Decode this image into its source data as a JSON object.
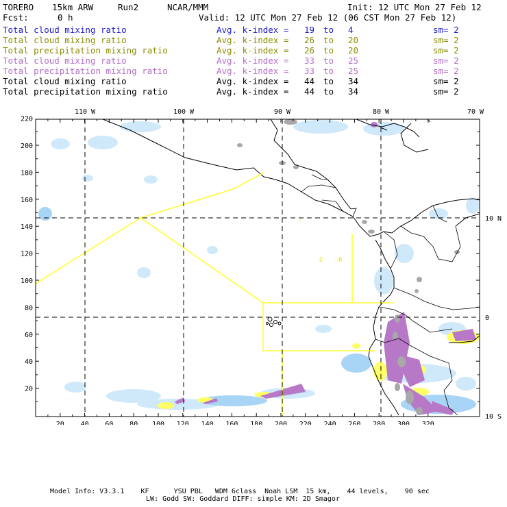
{
  "header": {
    "model": "TORERO",
    "resolution": "15km ARW",
    "run": "Run2",
    "org": "NCAR/MMM",
    "init": "Init: 12 UTC Mon 27 Feb 12",
    "fcst_label": "Fcst:",
    "fcst_value": "0 h",
    "valid": "Valid: 12 UTC Mon 27 Feb 12 (06 CST Mon 27 Feb 12)"
  },
  "legend": [
    {
      "field": "Total cloud mixing ratio",
      "kindex": "Avg. k-index =",
      "from": "19",
      "to_word": "to",
      "to": "4",
      "sm": "sm= 2",
      "color": "#1c1cc8"
    },
    {
      "field": "Total cloud mixing ratio",
      "kindex": "Avg. k-index =",
      "from": "26",
      "to_word": "to",
      "to": "20",
      "sm": "sm= 2",
      "color": "#8c8c00"
    },
    {
      "field": "Total precipitation mixing ratio",
      "kindex": "Avg. k-index =",
      "from": "26",
      "to_word": "to",
      "to": "20",
      "sm": "sm= 2",
      "color": "#8c8c00"
    },
    {
      "field": "Total cloud mixing ratio",
      "kindex": "Avg. k-index =",
      "from": "33",
      "to_word": "to",
      "to": "25",
      "sm": "sm= 2",
      "color": "#b46ec8"
    },
    {
      "field": "Total precipitation mixing ratio",
      "kindex": "Avg. k-index =",
      "from": "33",
      "to_word": "to",
      "to": "25",
      "sm": "sm= 2",
      "color": "#b46ec8"
    },
    {
      "field": "Total cloud mixing ratio",
      "kindex": "Avg. k-index =",
      "from": "44",
      "to_word": "to",
      "to": "34",
      "sm": "sm= 2",
      "color": "#000000"
    },
    {
      "field": "Total precipitation mixing ratio",
      "kindex": "Avg. k-index =",
      "from": "44",
      "to_word": "to",
      "to": "34",
      "sm": "sm= 2",
      "color": "#000000"
    }
  ],
  "map": {
    "top_lon_labels": [
      "110 W",
      "100 W",
      "90 W",
      "80 W",
      "70 W"
    ],
    "right_lat_labels": [
      "10 N",
      "0",
      "10 S"
    ],
    "y_ticks": [
      "20",
      "40",
      "60",
      "80",
      "100",
      "120",
      "140",
      "160",
      "180",
      "200",
      "220"
    ],
    "x_ticks": [
      "20",
      "40",
      "60",
      "80",
      "100",
      "120",
      "140",
      "160",
      "180",
      "200",
      "220",
      "240",
      "260",
      "280",
      "300",
      "320"
    ],
    "region_labels": [
      "C",
      "R"
    ],
    "colors": {
      "light_cloud": "#cfe9fb",
      "medium_cloud": "#a8d4f5",
      "yellow": "#ffff66",
      "purple": "#b878c8",
      "gray": "#a8a8a8",
      "boundary": "#ffff33"
    }
  },
  "footer": {
    "line1": "Model Info: V3.3.1    KF      YSU PBL   WDM 6class  Noah LSM  15 km,    44 levels,    90 sec",
    "line2": "LW: Godd SW: Goddard DIFF: simple KM: 2D Smagor"
  }
}
